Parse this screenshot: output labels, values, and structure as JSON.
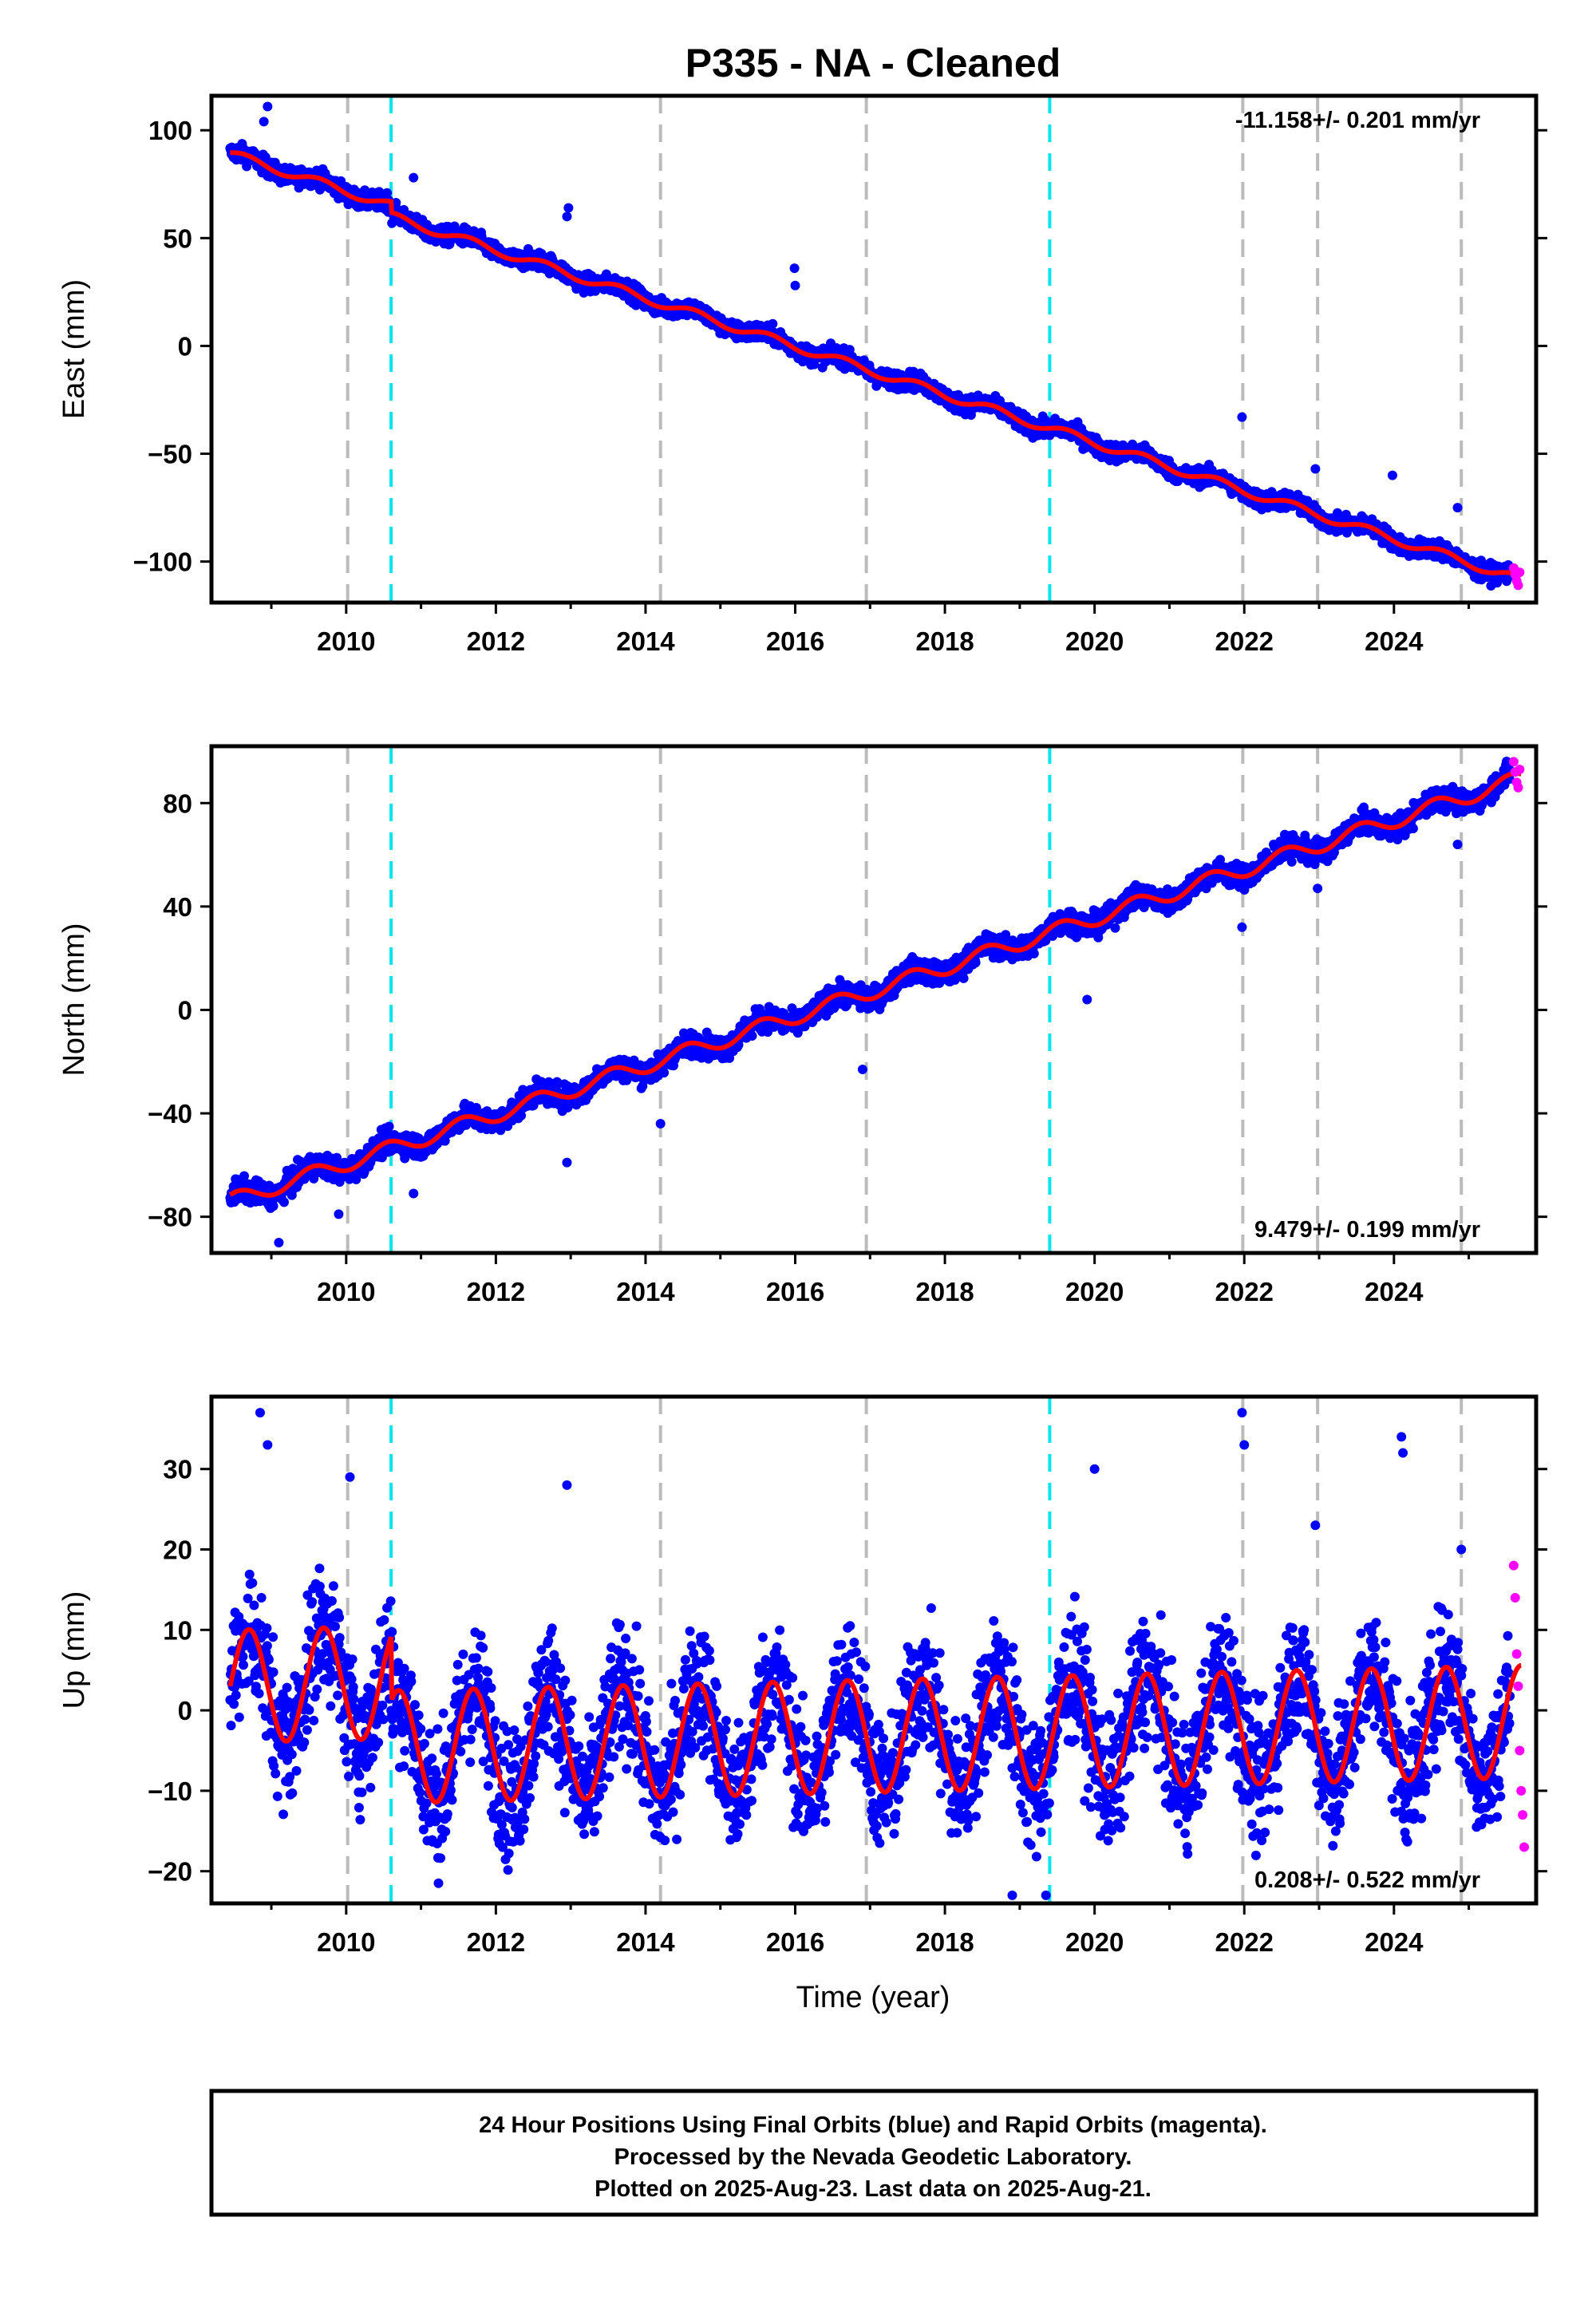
{
  "title": "P335  - NA - Cleaned",
  "xlabel": "Time (year)",
  "footer": {
    "line1": "24 Hour Positions Using Final Orbits (blue) and Rapid Orbits (magenta).",
    "line2": "Processed by the Nevada Geodetic Laboratory.",
    "line3": "Plotted on 2025-Aug-23. Last data on 2025-Aug-21."
  },
  "colors": {
    "final_orbits": "#0000ff",
    "rapid_orbits": "#ff00ff",
    "model_fit": "#ff0000",
    "equipment_change": "#bbbbbb",
    "earthquake_event": "#00e5ee"
  },
  "chart_data": [
    {
      "type": "scatter",
      "panel": "east",
      "ylabel": "East (mm)",
      "rate": "-11.158+/- 0.201 mm/yr",
      "xlim": [
        2008.2,
        2025.9
      ],
      "ylim": [
        -119,
        116
      ],
      "xticks": [
        2010,
        2012,
        2014,
        2016,
        2018,
        2020,
        2022,
        2024
      ],
      "yticks": [
        -100,
        -50,
        0,
        50,
        100
      ],
      "ytick_labels": [
        "−100",
        "−50",
        "0",
        "50",
        "100"
      ],
      "trend": {
        "start_year": 2008.45,
        "start_value": 89,
        "rate": -11.158,
        "annual_amp": 2.0,
        "annual_phase": 0.4,
        "steps": [
          {
            "year": 2010.6,
            "offset": -5
          }
        ]
      },
      "data_start": 2008.45,
      "data_end": 2025.55,
      "scatter_sd": 2.0,
      "outliers": [
        [
          2008.95,
          111
        ],
        [
          2008.9,
          104
        ],
        [
          2010.9,
          78
        ],
        [
          2012.97,
          64
        ],
        [
          2012.95,
          60
        ],
        [
          2015.99,
          36
        ],
        [
          2016.0,
          28
        ],
        [
          2021.97,
          -33
        ],
        [
          2022.95,
          -57
        ],
        [
          2023.98,
          -60
        ],
        [
          2024.85,
          -75
        ]
      ],
      "rapid": [
        [
          2025.6,
          -103
        ],
        [
          2025.62,
          -106
        ],
        [
          2025.64,
          -109
        ],
        [
          2025.66,
          -111
        ],
        [
          2025.68,
          -105
        ]
      ],
      "equipment_changes": [
        2010.02,
        2014.2,
        2016.95,
        2021.98,
        2022.98,
        2024.9
      ],
      "events": [
        2010.6,
        2019.4
      ]
    },
    {
      "type": "scatter",
      "panel": "north",
      "ylabel": "North (mm)",
      "rate": "9.479+/- 0.199 mm/yr",
      "xlim": [
        2008.2,
        2025.9
      ],
      "ylim": [
        -94,
        102
      ],
      "xticks": [
        2010,
        2012,
        2014,
        2016,
        2018,
        2020,
        2022,
        2024
      ],
      "yticks": [
        -80,
        -40,
        0,
        40,
        80
      ],
      "ytick_labels": [
        "−80",
        "−40",
        "0",
        "40",
        "80"
      ],
      "trend": {
        "start_year": 2008.45,
        "start_value": -74,
        "rate": 9.479,
        "annual_amp": 3.0,
        "annual_phase": 0.3,
        "steps": []
      },
      "data_start": 2008.45,
      "data_end": 2025.55,
      "scatter_sd": 2.2,
      "outliers": [
        [
          2009.1,
          -90
        ],
        [
          2009.9,
          -79
        ],
        [
          2010.9,
          -71
        ],
        [
          2012.95,
          -59
        ],
        [
          2014.2,
          -44
        ],
        [
          2016.9,
          -23
        ],
        [
          2019.9,
          4
        ],
        [
          2021.97,
          32
        ],
        [
          2022.98,
          47
        ],
        [
          2024.85,
          64
        ]
      ],
      "rapid": [
        [
          2025.6,
          96
        ],
        [
          2025.62,
          92
        ],
        [
          2025.64,
          88
        ],
        [
          2025.66,
          86
        ],
        [
          2025.68,
          93
        ]
      ],
      "equipment_changes": [
        2010.02,
        2014.2,
        2016.95,
        2021.98,
        2022.98,
        2024.9
      ],
      "events": [
        2010.6,
        2019.4
      ]
    },
    {
      "type": "scatter",
      "panel": "up",
      "ylabel": "Up (mm)",
      "rate": "0.208+/- 0.522 mm/yr",
      "xlim": [
        2008.2,
        2025.9
      ],
      "ylim": [
        -24,
        39
      ],
      "xticks": [
        2010,
        2012,
        2014,
        2016,
        2018,
        2020,
        2022,
        2024
      ],
      "yticks": [
        -20,
        -10,
        0,
        10,
        20,
        30
      ],
      "ytick_labels": [
        "−20",
        "−10",
        "0",
        "10",
        "20",
        "30"
      ],
      "trend": {
        "start_year": 2008.45,
        "start_value": 3,
        "rate": 0.208,
        "annual_amp": 7.0,
        "annual_phase": 0.45,
        "steps": [
          {
            "year": 2010.6,
            "offset": -8
          }
        ]
      },
      "data_start": 2008.45,
      "data_end": 2025.55,
      "scatter_sd": 4.0,
      "outliers": [
        [
          2008.85,
          37
        ],
        [
          2008.95,
          33
        ],
        [
          2010.05,
          29
        ],
        [
          2012.95,
          28
        ],
        [
          2018.9,
          -23
        ],
        [
          2019.35,
          -23
        ],
        [
          2020.0,
          30
        ],
        [
          2021.97,
          37
        ],
        [
          2022.0,
          33
        ],
        [
          2022.95,
          23
        ],
        [
          2024.1,
          34
        ],
        [
          2024.12,
          32
        ],
        [
          2024.9,
          20
        ]
      ],
      "rapid": [
        [
          2025.6,
          18
        ],
        [
          2025.62,
          14
        ],
        [
          2025.64,
          7
        ],
        [
          2025.66,
          3
        ],
        [
          2025.68,
          -5
        ],
        [
          2025.7,
          -10
        ],
        [
          2025.72,
          -13
        ],
        [
          2025.74,
          -17
        ]
      ],
      "equipment_changes": [
        2010.02,
        2014.2,
        2016.95,
        2021.98,
        2022.98,
        2024.9
      ],
      "events": [
        2010.6,
        2019.4
      ]
    }
  ]
}
